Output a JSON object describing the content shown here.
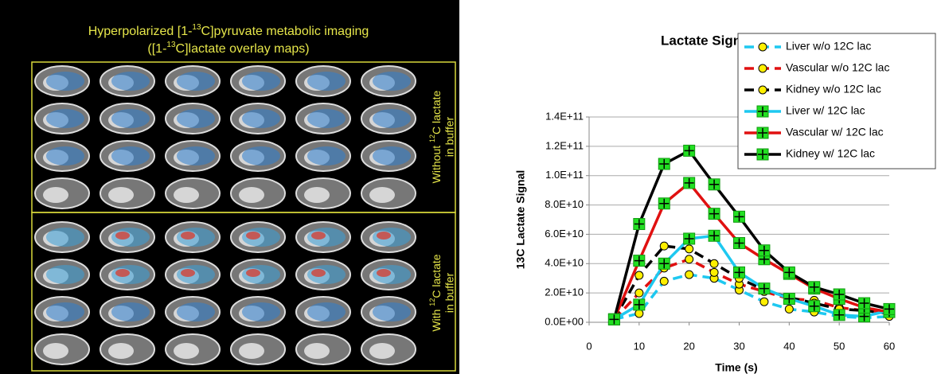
{
  "image_panel": {
    "title_line1": [
      "Hyperpolarized [1-",
      "13",
      "C]pyruvate metabolic imaging"
    ],
    "title_line2": [
      "([1-",
      "13",
      "C]lactate overlay maps)"
    ],
    "label_top": [
      "Without ",
      "12",
      "C lactate",
      "in buffer"
    ],
    "label_bottom": [
      "With ",
      "12",
      "C lactate",
      "in buffer"
    ]
  },
  "chart_data": {
    "type": "line",
    "title": "Lactate Signal Intensity",
    "x_label": "Time (s)",
    "y_label": "13C Lactate Signal",
    "x": [
      5,
      10,
      15,
      20,
      25,
      30,
      35,
      40,
      45,
      50,
      55,
      60
    ],
    "xlim": [
      0,
      60
    ],
    "xticks": [
      0,
      10,
      20,
      30,
      40,
      50,
      60
    ],
    "ylim": [
      0,
      140000000000.0
    ],
    "yticks": [
      {
        "value": 0,
        "label": "0.0E+00"
      },
      {
        "value": 20000000000.0,
        "label": "2.0E+10"
      },
      {
        "value": 40000000000.0,
        "label": "4.0E+10"
      },
      {
        "value": 60000000000.0,
        "label": "6.0E+10"
      },
      {
        "value": 80000000000.0,
        "label": "8.0E+10"
      },
      {
        "value": 100000000000.0,
        "label": "1.0E+11"
      },
      {
        "value": 120000000000.0,
        "label": "1.2E+11"
      },
      {
        "value": 140000000000.0,
        "label": "1.4E+11"
      }
    ],
    "grid": true,
    "legend": "top-right",
    "series": [
      {
        "name": "Liver w/o 12C lac",
        "color": "#1ec8f0",
        "dash": true,
        "marker": "circle",
        "values": [
          2000000000.0,
          6000000000.0,
          28000000000.0,
          32500000000.0,
          30000000000.0,
          22000000000.0,
          14000000000.0,
          9000000000.0,
          7000000000.0,
          4000000000.0,
          3000000000.0,
          4000000000.0
        ]
      },
      {
        "name": "Vascular w/o 12C lac",
        "color": "#e01010",
        "dash": true,
        "marker": "circle",
        "values": [
          2000000000.0,
          20000000000.0,
          37000000000.0,
          43000000000.0,
          34000000000.0,
          26000000000.0,
          21000000000.0,
          16000000000.0,
          15000000000.0,
          10000000000.0,
          8000000000.0,
          7000000000.0
        ]
      },
      {
        "name": "Kidney w/o 12C lac",
        "color": "#000000",
        "dash": true,
        "marker": "circle",
        "values": [
          2000000000.0,
          32000000000.0,
          52000000000.0,
          50000000000.0,
          40000000000.0,
          30000000000.0,
          22000000000.0,
          17000000000.0,
          13000000000.0,
          9000000000.0,
          8000000000.0,
          6000000000.0
        ]
      },
      {
        "name": "Liver w/ 12C lac",
        "color": "#1ec8f0",
        "dash": false,
        "marker": "plus-square",
        "values": [
          2000000000.0,
          12000000000.0,
          40000000000.0,
          57000000000.0,
          59000000000.0,
          34000000000.0,
          23000000000.0,
          16000000000.0,
          11000000000.0,
          5000000000.0,
          4000000000.0,
          8000000000.0
        ]
      },
      {
        "name": "Vascular w/ 12C lac",
        "color": "#e01010",
        "dash": false,
        "marker": "plus-square",
        "values": [
          2000000000.0,
          42000000000.0,
          81000000000.0,
          95000000000.0,
          74000000000.0,
          54000000000.0,
          43000000000.0,
          33000000000.0,
          23000000000.0,
          16000000000.0,
          10000000000.0,
          7000000000.0
        ]
      },
      {
        "name": "Kidney w/ 12C lac",
        "color": "#000000",
        "dash": false,
        "marker": "plus-square",
        "values": [
          2000000000.0,
          67000000000.0,
          108000000000.0,
          117000000000.0,
          94000000000.0,
          72000000000.0,
          49000000000.0,
          34000000000.0,
          24000000000.0,
          19000000000.0,
          13000000000.0,
          9000000000.0
        ]
      }
    ]
  }
}
